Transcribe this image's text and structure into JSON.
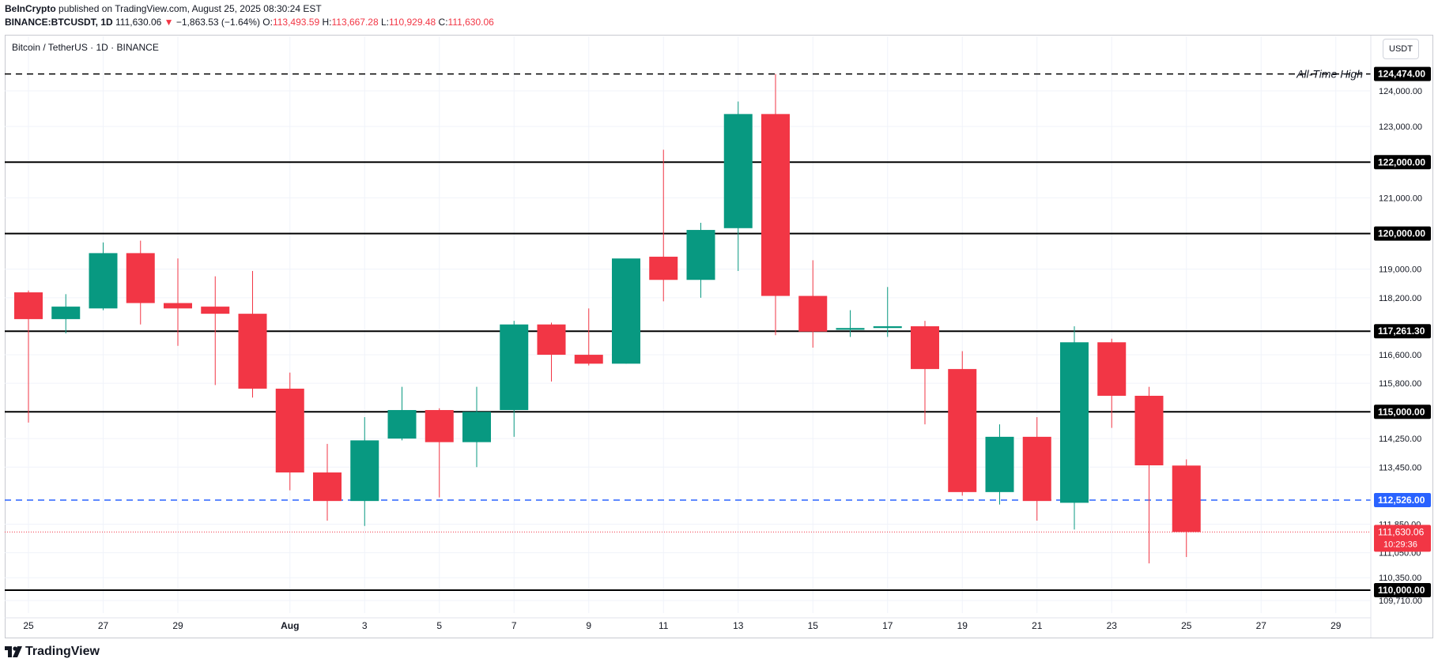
{
  "header": {
    "publisher": "BeInCrypto",
    "published_text": "published on TradingView.com, August 25, 2025 08:30:24 EST",
    "symbol": "BINANCE:BTCUSDT, 1D",
    "last": "111,630.06",
    "change": "−1,863.53 (−1.64%)",
    "open_label": "O:",
    "open": "113,493.59",
    "high_label": "H:",
    "high": "113,667.28",
    "low_label": "L:",
    "low": "110,929.48",
    "close_label": "C:",
    "close": "111,630.06"
  },
  "chart_title": "Bitcoin / TetherUS · 1D · BINANCE",
  "currency": "USDT",
  "footer": {
    "brand": "TradingView"
  },
  "colors": {
    "up": "#089981",
    "down": "#f23645",
    "level": "#000000",
    "dashed_blue": "#2962ff",
    "accent_blue": "#2962ff"
  },
  "chart_data": {
    "type": "candlestick",
    "title": "Bitcoin / TetherUS · 1D · BINANCE",
    "ylim": [
      109500,
      125000
    ],
    "y_ticks": [
      {
        "value": 124000,
        "label": "124,000.00"
      },
      {
        "value": 123000,
        "label": "123,000.00"
      },
      {
        "value": 121000,
        "label": "121,000.00"
      },
      {
        "value": 119000,
        "label": "119,000.00"
      },
      {
        "value": 118200,
        "label": "118,200.00"
      },
      {
        "value": 116600,
        "label": "116,600.00"
      },
      {
        "value": 115800,
        "label": "115,800.00"
      },
      {
        "value": 114250,
        "label": "114,250.00"
      },
      {
        "value": 113450,
        "label": "113,450.00"
      },
      {
        "value": 111850,
        "label": "111,850.00"
      },
      {
        "value": 111050,
        "label": "111,050.00"
      },
      {
        "value": 110350,
        "label": "110,350.00"
      },
      {
        "value": 109710,
        "label": "109,710.00"
      }
    ],
    "x_ticks": [
      {
        "index": 0,
        "label": "25"
      },
      {
        "index": 2,
        "label": "27"
      },
      {
        "index": 4,
        "label": "29"
      },
      {
        "index": 7,
        "label": "Aug"
      },
      {
        "index": 9,
        "label": "3"
      },
      {
        "index": 11,
        "label": "5"
      },
      {
        "index": 13,
        "label": "7"
      },
      {
        "index": 15,
        "label": "9"
      },
      {
        "index": 17,
        "label": "11"
      },
      {
        "index": 19,
        "label": "13"
      },
      {
        "index": 21,
        "label": "15"
      },
      {
        "index": 23,
        "label": "17"
      },
      {
        "index": 25,
        "label": "19"
      },
      {
        "index": 27,
        "label": "21"
      },
      {
        "index": 29,
        "label": "23"
      },
      {
        "index": 31,
        "label": "25"
      },
      {
        "index": 33,
        "label": "27"
      },
      {
        "index": 35,
        "label": "29"
      }
    ],
    "candles": [
      {
        "o": 118350,
        "h": 118400,
        "l": 114700,
        "c": 117600
      },
      {
        "o": 117600,
        "h": 118300,
        "l": 117200,
        "c": 117950
      },
      {
        "o": 117900,
        "h": 119750,
        "l": 117850,
        "c": 119450
      },
      {
        "o": 119450,
        "h": 119800,
        "l": 117450,
        "c": 118050
      },
      {
        "o": 118050,
        "h": 119300,
        "l": 116850,
        "c": 117900
      },
      {
        "o": 117950,
        "h": 118800,
        "l": 115750,
        "c": 117750
      },
      {
        "o": 117750,
        "h": 118950,
        "l": 115400,
        "c": 115650
      },
      {
        "o": 115650,
        "h": 116100,
        "l": 112800,
        "c": 113300
      },
      {
        "o": 113300,
        "h": 114100,
        "l": 111950,
        "c": 112500
      },
      {
        "o": 112500,
        "h": 114850,
        "l": 111800,
        "c": 114200
      },
      {
        "o": 114250,
        "h": 115700,
        "l": 114200,
        "c": 115050
      },
      {
        "o": 115050,
        "h": 115100,
        "l": 112600,
        "c": 114150
      },
      {
        "o": 114150,
        "h": 115700,
        "l": 113450,
        "c": 115000
      },
      {
        "o": 115050,
        "h": 117550,
        "l": 114300,
        "c": 117450
      },
      {
        "o": 117450,
        "h": 117500,
        "l": 115850,
        "c": 116600
      },
      {
        "o": 116600,
        "h": 117900,
        "l": 116300,
        "c": 116350
      },
      {
        "o": 116350,
        "h": 119250,
        "l": 116350,
        "c": 119300
      },
      {
        "o": 119350,
        "h": 122350,
        "l": 118100,
        "c": 118700
      },
      {
        "o": 118700,
        "h": 120300,
        "l": 118200,
        "c": 120100
      },
      {
        "o": 120150,
        "h": 123700,
        "l": 118950,
        "c": 123350
      },
      {
        "o": 123350,
        "h": 124474,
        "l": 117150,
        "c": 118250
      },
      {
        "o": 118250,
        "h": 119250,
        "l": 116800,
        "c": 117250
      },
      {
        "o": 117300,
        "h": 117850,
        "l": 117100,
        "c": 117350
      },
      {
        "o": 117350,
        "h": 118500,
        "l": 117100,
        "c": 117400
      },
      {
        "o": 117400,
        "h": 117550,
        "l": 114650,
        "c": 116200
      },
      {
        "o": 116200,
        "h": 116700,
        "l": 112650,
        "c": 112750
      },
      {
        "o": 112750,
        "h": 114650,
        "l": 112400,
        "c": 114300
      },
      {
        "o": 114300,
        "h": 114850,
        "l": 111950,
        "c": 112500
      },
      {
        "o": 112450,
        "h": 117400,
        "l": 111700,
        "c": 116950
      },
      {
        "o": 116950,
        "h": 117050,
        "l": 114550,
        "c": 115450
      },
      {
        "o": 115450,
        "h": 115700,
        "l": 110750,
        "c": 113500
      },
      {
        "o": 113493.59,
        "h": 113667.28,
        "l": 110929.48,
        "c": 111630.06
      }
    ],
    "levels": [
      {
        "value": 124474,
        "label": "124,474.00",
        "style": "dashed",
        "color": "#000000",
        "annotation": "All-Time High"
      },
      {
        "value": 122000,
        "label": "122,000.00",
        "style": "solid",
        "color": "#000000"
      },
      {
        "value": 120000,
        "label": "120,000.00",
        "style": "solid",
        "color": "#000000"
      },
      {
        "value": 117261.3,
        "label": "117,261.30",
        "style": "solid",
        "color": "#000000"
      },
      {
        "value": 115000,
        "label": "115,000.00",
        "style": "solid",
        "color": "#000000"
      },
      {
        "value": 112526,
        "label": "112,526.00",
        "style": "dashed",
        "color": "#2962ff"
      },
      {
        "value": 110000,
        "label": "110,000.00",
        "style": "solid",
        "color": "#000000"
      }
    ],
    "current_price": {
      "value": 111630.06,
      "label": "111,630.06",
      "countdown": "10:29:36"
    }
  }
}
